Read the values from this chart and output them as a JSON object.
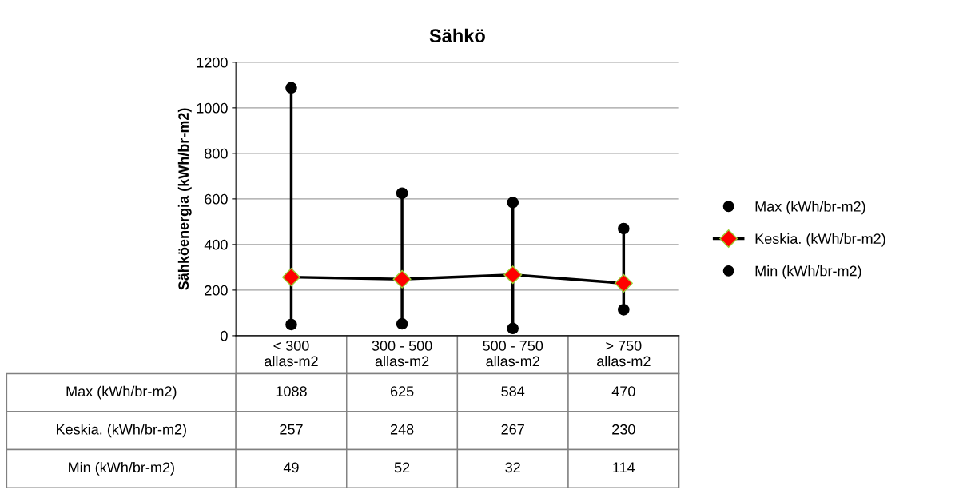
{
  "chart_data": {
    "type": "line",
    "title": "Sähkö",
    "ylabel": "Sähköenergia (kWh/br-m2)",
    "categories": [
      "< 300\nallas-m2",
      "300 - 500\nallas-m2",
      "500 - 750\nallas-m2",
      "> 750\nallas-m2"
    ],
    "series": [
      {
        "name": "Max (kWh/br-m2)",
        "type": "scatter",
        "marker": "circle",
        "color": "#000000",
        "values": [
          1088,
          625,
          584,
          470
        ]
      },
      {
        "name": "Keskia. (kWh/br-m2)",
        "marker": "diamond",
        "color": "#000000",
        "values": [
          257,
          248,
          267,
          230
        ]
      },
      {
        "name": "Min (kWh/br-m2)",
        "type": "scatter",
        "marker": "circle",
        "color": "#000000",
        "values": [
          49,
          52,
          32,
          114
        ]
      }
    ],
    "ylim": [
      0,
      1200
    ],
    "yticks": [
      0,
      200,
      400,
      600,
      800,
      1000,
      1200
    ],
    "grid": "y",
    "legend": "right",
    "data_labels": true
  }
}
